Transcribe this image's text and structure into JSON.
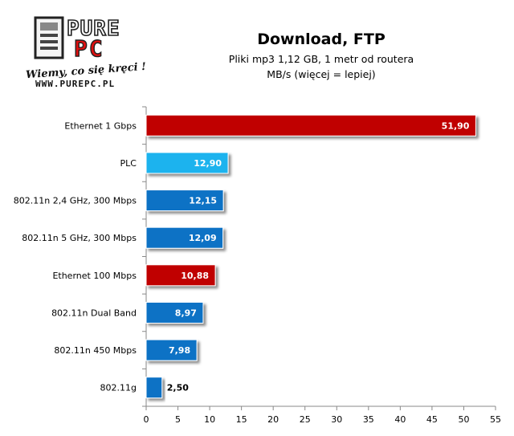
{
  "header": {
    "title": "Download, FTP",
    "subtitle_line1": "Pliki mp3 1,12 GB, 1 metr od routera",
    "subtitle_line2": "MB/s (więcej = lepiej)"
  },
  "logo": {
    "brand_top": "PURE",
    "brand_bottom": "PC",
    "slogan": "Wiemy, co się kręci !",
    "url": "WWW.PUREPC.PL"
  },
  "chart_data": {
    "type": "bar",
    "orientation": "horizontal",
    "title": "Download, FTP",
    "subtitle": "Pliki mp3 1,12 GB, 1 metr od routera",
    "xlabel": "MB/s (więcej = lepiej)",
    "ylabel": "",
    "xlim": [
      0,
      55
    ],
    "xticks": [
      0,
      5,
      10,
      15,
      20,
      25,
      30,
      35,
      40,
      45,
      50,
      55
    ],
    "grid": false,
    "legend": "none",
    "categories": [
      "Ethernet 1 Gbps",
      "PLC",
      "802.11n 2,4 GHz, 300 Mbps",
      "802.11n 5 GHz, 300 Mbps",
      "Ethernet 100 Mbps",
      "802.11n Dual Band",
      "802.11n 450 Mbps",
      "802.11g"
    ],
    "values": [
      51.9,
      12.9,
      12.15,
      12.09,
      10.88,
      8.97,
      7.98,
      2.5
    ],
    "value_labels": [
      "51,90",
      "12,90",
      "12,15",
      "12,09",
      "10,88",
      "8,97",
      "7,98",
      "2,50"
    ],
    "bar_colors": [
      "#c00000",
      "#1fb3ee",
      "#0f72c5",
      "#0f72c5",
      "#c00000",
      "#0f72c5",
      "#0f72c5",
      "#0f72c5"
    ]
  }
}
